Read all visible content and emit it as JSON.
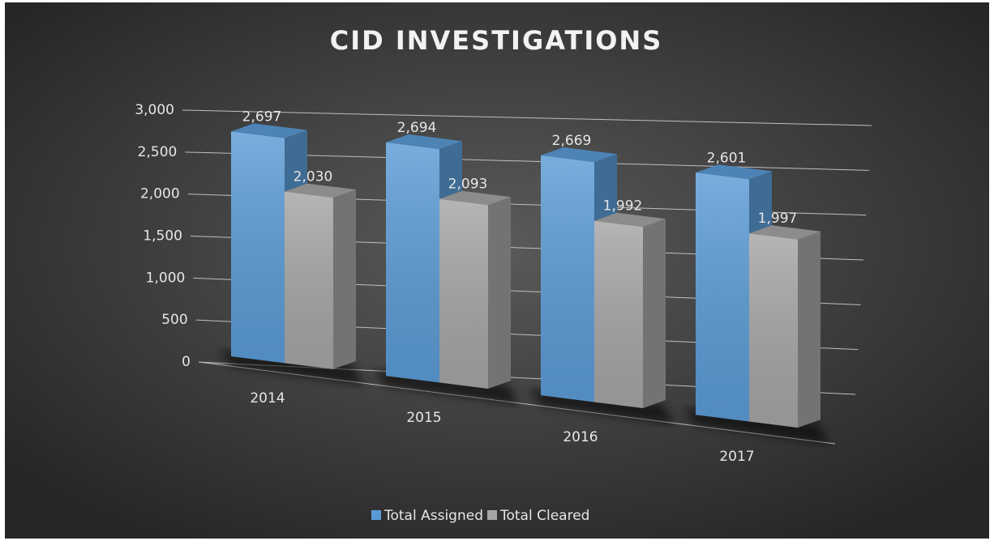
{
  "chart_data": {
    "type": "bar3d",
    "title": "CID INVESTIGATIONS",
    "categories": [
      "2014",
      "2015",
      "2016",
      "2017"
    ],
    "series": [
      {
        "name": "Total Assigned",
        "color": "#5b9bd5",
        "values": [
          2697,
          2694,
          2669,
          2601
        ],
        "value_labels": [
          "2,697",
          "2,694",
          "2,669",
          "2,601"
        ]
      },
      {
        "name": "Total Cleared",
        "color": "#a5a5a5",
        "values": [
          2030,
          2093,
          1992,
          1997
        ],
        "value_labels": [
          "2,030",
          "2,093",
          "1,992",
          "1,997"
        ]
      }
    ],
    "ylim": [
      0,
      3000
    ],
    "yticks": [
      0,
      500,
      {
        "value": 1000,
        "label": "1,000"
      },
      {
        "value": 1500,
        "label": "1,500"
      },
      {
        "value": 2000,
        "label": "2,000"
      },
      {
        "value": 2500,
        "label": "2,500"
      },
      {
        "value": 3000,
        "label": "3,000"
      }
    ],
    "grid": true,
    "legend": "bottom"
  }
}
